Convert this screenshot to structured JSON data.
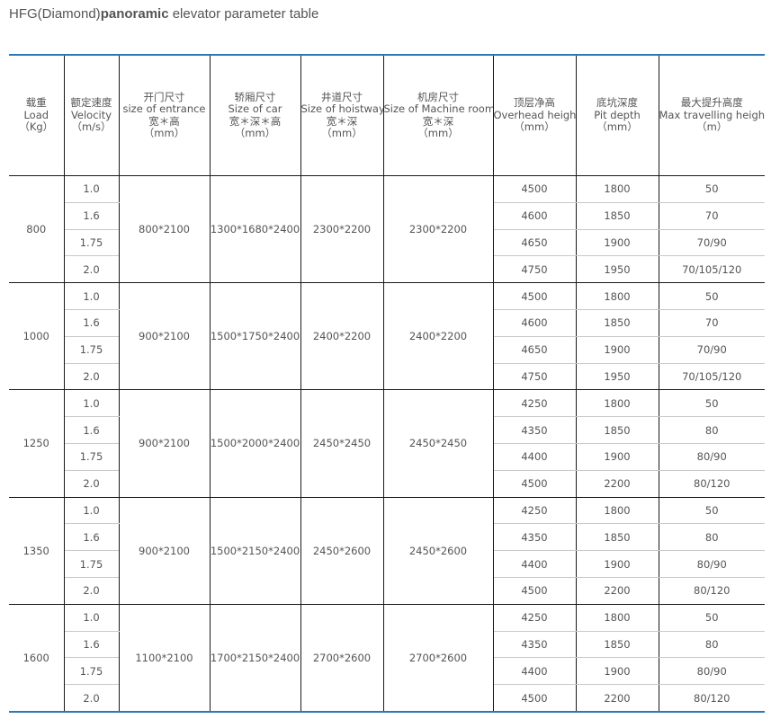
{
  "title": {
    "prefix": "HFG(Diamond)",
    "bold": "panoramic",
    "suffix": " elevator parameter table"
  },
  "headers": [
    [
      "载重",
      "Load",
      "（Kg）"
    ],
    [
      "额定速度",
      "Velocity",
      "（m/s）"
    ],
    [
      "开门尺寸",
      "size of entrance",
      "宽＊高",
      "（mm）"
    ],
    [
      "轿厢尺寸",
      "Size of car",
      "宽＊深＊高",
      "（mm）"
    ],
    [
      "井道尺寸",
      "Size of hoistway",
      "宽＊深",
      "（mm）"
    ],
    [
      "机房尺寸",
      "Size of Machine room",
      "宽＊深",
      "（mm）"
    ],
    [
      "顶层净高",
      "Overhead height",
      "（mm）"
    ],
    [
      "底坑深度",
      "Pit depth",
      "（mm）"
    ],
    [
      "最大提升高度",
      "Max travelling height",
      "（m）"
    ]
  ],
  "groups": [
    {
      "load": "800",
      "entrance": "800*2100",
      "car": "1300*1680*2400",
      "hoistway": "2300*2200",
      "machine_room": "2300*2200",
      "rows": [
        {
          "velocity": "1.0",
          "overhead": "4500",
          "pit": "1800",
          "travel": "50"
        },
        {
          "velocity": "1.6",
          "overhead": "4600",
          "pit": "1850",
          "travel": "70"
        },
        {
          "velocity": "1.75",
          "overhead": "4650",
          "pit": "1900",
          "travel": "70/90"
        },
        {
          "velocity": "2.0",
          "overhead": "4750",
          "pit": "1950",
          "travel": "70/105/120"
        }
      ]
    },
    {
      "load": "1000",
      "entrance": "900*2100",
      "car": "1500*1750*2400",
      "hoistway": "2400*2200",
      "machine_room": "2400*2200",
      "rows": [
        {
          "velocity": "1.0",
          "overhead": "4500",
          "pit": "1800",
          "travel": "50"
        },
        {
          "velocity": "1.6",
          "overhead": "4600",
          "pit": "1850",
          "travel": "70"
        },
        {
          "velocity": "1.75",
          "overhead": "4650",
          "pit": "1900",
          "travel": "70/90"
        },
        {
          "velocity": "2.0",
          "overhead": "4750",
          "pit": "1950",
          "travel": "70/105/120"
        }
      ]
    },
    {
      "load": "1250",
      "entrance": "900*2100",
      "car": "1500*2000*2400",
      "hoistway": "2450*2450",
      "machine_room": "2450*2450",
      "rows": [
        {
          "velocity": "1.0",
          "overhead": "4250",
          "pit": "1800",
          "travel": "50"
        },
        {
          "velocity": "1.6",
          "overhead": "4350",
          "pit": "1850",
          "travel": "80"
        },
        {
          "velocity": "1.75",
          "overhead": "4400",
          "pit": "1900",
          "travel": "80/90"
        },
        {
          "velocity": "2.0",
          "overhead": "4500",
          "pit": "2200",
          "travel": "80/120"
        }
      ]
    },
    {
      "load": "1350",
      "entrance": "900*2100",
      "car": "1500*2150*2400",
      "hoistway": "2450*2600",
      "machine_room": "2450*2600",
      "rows": [
        {
          "velocity": "1.0",
          "overhead": "4250",
          "pit": "1800",
          "travel": "50"
        },
        {
          "velocity": "1.6",
          "overhead": "4350",
          "pit": "1850",
          "travel": "80"
        },
        {
          "velocity": "1.75",
          "overhead": "4400",
          "pit": "1900",
          "travel": "80/90"
        },
        {
          "velocity": "2.0",
          "overhead": "4500",
          "pit": "2200",
          "travel": "80/120"
        }
      ]
    },
    {
      "load": "1600",
      "entrance": "1100*2100",
      "car": "1700*2150*2400",
      "hoistway": "2700*2600",
      "machine_room": "2700*2600",
      "rows": [
        {
          "velocity": "1.0",
          "overhead": "4250",
          "pit": "1800",
          "travel": "50"
        },
        {
          "velocity": "1.6",
          "overhead": "4350",
          "pit": "1850",
          "travel": "80"
        },
        {
          "velocity": "1.75",
          "overhead": "4400",
          "pit": "1900",
          "travel": "80/90"
        },
        {
          "velocity": "2.0",
          "overhead": "4500",
          "pit": "2200",
          "travel": "80/120"
        }
      ]
    }
  ],
  "colors": {
    "accent_rule": "#2f78b7",
    "text": "#555555",
    "grid_dark": "#1a1a1a",
    "grid_light": "#c9c9c9"
  }
}
